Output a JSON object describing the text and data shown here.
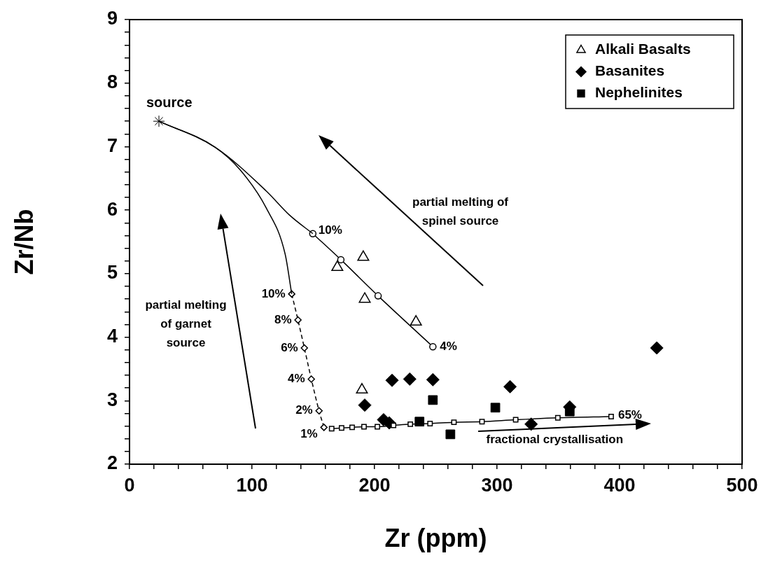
{
  "chart_data": {
    "type": "scatter",
    "xlabel": "Zr (ppm)",
    "ylabel": "Zr/Nb",
    "xlim": [
      0,
      500
    ],
    "ylim": [
      2,
      9
    ],
    "xticks": [
      0,
      {
        "value": 20,
        "label": null
      },
      {
        "value": 40,
        "label": null
      },
      {
        "value": 60,
        "label": null
      },
      {
        "value": 80,
        "label": null
      },
      100,
      {
        "value": 120,
        "label": null
      },
      {
        "value": 140,
        "label": null
      },
      {
        "value": 160,
        "label": null
      },
      {
        "value": 180,
        "label": null
      },
      200,
      {
        "value": 220,
        "label": null
      },
      {
        "value": 240,
        "label": null
      },
      {
        "value": 260,
        "label": null
      },
      {
        "value": 280,
        "label": null
      },
      300,
      {
        "value": 320,
        "label": null
      },
      {
        "value": 340,
        "label": null
      },
      {
        "value": 360,
        "label": null
      },
      {
        "value": 380,
        "label": null
      },
      400,
      {
        "value": 420,
        "label": null
      },
      {
        "value": 440,
        "label": null
      },
      {
        "value": 460,
        "label": null
      },
      {
        "value": 480,
        "label": null
      },
      500
    ],
    "yticks": [
      2,
      {
        "value": 2.2,
        "label": null
      },
      {
        "value": 2.4,
        "label": null
      },
      {
        "value": 2.6,
        "label": null
      },
      {
        "value": 2.8,
        "label": null
      },
      3,
      {
        "value": 3.2,
        "label": null
      },
      {
        "value": 3.4,
        "label": null
      },
      {
        "value": 3.6,
        "label": null
      },
      {
        "value": 3.8,
        "label": null
      },
      4,
      {
        "value": 4.2,
        "label": null
      },
      {
        "value": 4.4,
        "label": null
      },
      {
        "value": 4.6,
        "label": null
      },
      {
        "value": 4.8,
        "label": null
      },
      5,
      {
        "value": 5.2,
        "label": null
      },
      {
        "value": 5.4,
        "label": null
      },
      {
        "value": 5.6,
        "label": null
      },
      {
        "value": 5.8,
        "label": null
      },
      6,
      {
        "value": 6.2,
        "label": null
      },
      {
        "value": 6.4,
        "label": null
      },
      {
        "value": 6.6,
        "label": null
      },
      {
        "value": 6.8,
        "label": null
      },
      7,
      {
        "value": 7.2,
        "label": null
      },
      {
        "value": 7.4,
        "label": null
      },
      {
        "value": 7.6,
        "label": null
      },
      {
        "value": 7.8,
        "label": null
      },
      8,
      {
        "value": 8.2,
        "label": null
      },
      {
        "value": 8.4,
        "label": null
      },
      {
        "value": 8.6,
        "label": null
      },
      {
        "value": 8.8,
        "label": null
      },
      9
    ],
    "grid": false,
    "legend": "top right",
    "series": [
      {
        "type": "line",
        "color": "#000000",
        "marker": "none",
        "line_style": "solid",
        "x": [
          24,
          69.9,
          111.7,
          130.7,
          149.6
        ],
        "values": [
          7.4,
          6.99,
          6.3,
          5.92,
          5.63
        ]
      },
      {
        "type": "line",
        "color": "#000000",
        "marker": "circle",
        "line_style": "solid",
        "x": [
          149.6,
          172.5,
          202.9,
          247.6
        ],
        "values": [
          5.63,
          5.22,
          4.65,
          3.85
        ]
      },
      {
        "type": "line",
        "color": "#000000",
        "marker": "none",
        "line_style": "solid",
        "x": [
          24,
          69.9,
          90.5,
          111.7,
          127,
          132.4
        ],
        "values": [
          7.4,
          6.99,
          6.63,
          6.03,
          5.31,
          4.68
        ]
      },
      {
        "type": "line",
        "color": "#000000",
        "marker": "diamond",
        "line_style": "dashed",
        "x": [
          132.4,
          137.5,
          142.7,
          148.4,
          154.7,
          158.7
        ],
        "values": [
          4.68,
          4.27,
          3.83,
          3.34,
          2.84,
          2.58
        ]
      },
      {
        "type": "line",
        "color": "#000000",
        "marker": "square",
        "line_style": "solid",
        "x": [
          165,
          173.1,
          181.7,
          191.4,
          202.3,
          215.5,
          229.2,
          245.3,
          264.8,
          287.7,
          315.2,
          349.6,
          393.1
        ],
        "values": [
          2.56,
          2.57,
          2.58,
          2.59,
          2.59,
          2.61,
          2.63,
          2.64,
          2.66,
          2.67,
          2.7,
          2.73,
          2.75
        ]
      },
      {
        "type": "scatter",
        "color": "#000000",
        "marker": "cross",
        "x": [
          24
        ],
        "values": [
          7.4
        ]
      },
      {
        "name": "Alkali Basalts",
        "type": "scatter",
        "color": "#000000",
        "marker": "triangle",
        "x": [
          190.8,
          169.6,
          192,
          233.8,
          189.7
        ],
        "values": [
          5.26,
          5.1,
          4.6,
          4.24,
          3.17
        ]
      },
      {
        "name": "Basanites",
        "type": "scatter",
        "color": "#000000",
        "marker": "diamond",
        "x": [
          192,
          207.4,
          212,
          214.3,
          228.7,
          247.6,
          310.6,
          327.8,
          359.3,
          430.4
        ],
        "values": [
          2.93,
          2.7,
          2.65,
          3.32,
          3.34,
          3.33,
          3.22,
          2.63,
          2.9,
          3.83
        ]
      },
      {
        "name": "Nephelinites",
        "type": "scatter",
        "color": "#000000",
        "marker": "square",
        "x": [
          247.6,
          236.7,
          261.9,
          298.6,
          359.3
        ],
        "values": [
          3.01,
          2.67,
          2.47,
          2.89,
          2.83
        ]
      }
    ],
    "annotations": [
      {
        "text": "source",
        "x": 24,
        "y": 7.4
      },
      {
        "text": "10%",
        "x": 149.6,
        "y": 5.63
      },
      {
        "text": "4%",
        "x": 247.6,
        "y": 3.85
      },
      {
        "text": "10%",
        "x": 132.4,
        "y": 4.68
      },
      {
        "text": "8%",
        "x": 137.5,
        "y": 4.27
      },
      {
        "text": "6%",
        "x": 142.7,
        "y": 3.83
      },
      {
        "text": "4%",
        "x": 148.4,
        "y": 3.34
      },
      {
        "text": "2%",
        "x": 154.7,
        "y": 2.84
      },
      {
        "text": "1%",
        "x": 158.7,
        "y": 2.58
      },
      {
        "text": "65%",
        "x": 393.1,
        "y": 2.75
      },
      "partial melting of\nspinel source",
      "partial melting\nof garnet\nsource",
      "fractional crystallisation"
    ]
  }
}
